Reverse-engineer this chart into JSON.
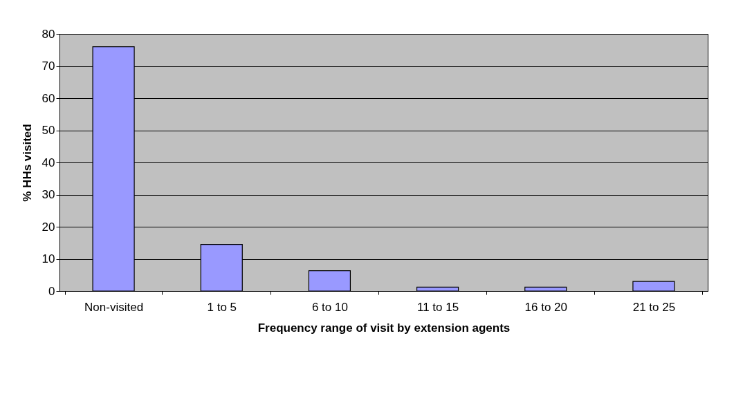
{
  "chart_data": {
    "type": "bar",
    "xlabel": "Frequency range of visit by extension agents",
    "ylabel": "% HHs visited",
    "categories": [
      "Non-visited",
      "1 to 5",
      "6 to 10",
      "11 to 15",
      "16 to 20",
      "21 to 25"
    ],
    "values": [
      76,
      14.5,
      6.3,
      1.2,
      1.2,
      3
    ],
    "color": "#9999ff",
    "ylim": [
      0,
      80
    ],
    "yticks": [
      0,
      10,
      20,
      30,
      40,
      50,
      60,
      70,
      80
    ],
    "grid": "y"
  }
}
